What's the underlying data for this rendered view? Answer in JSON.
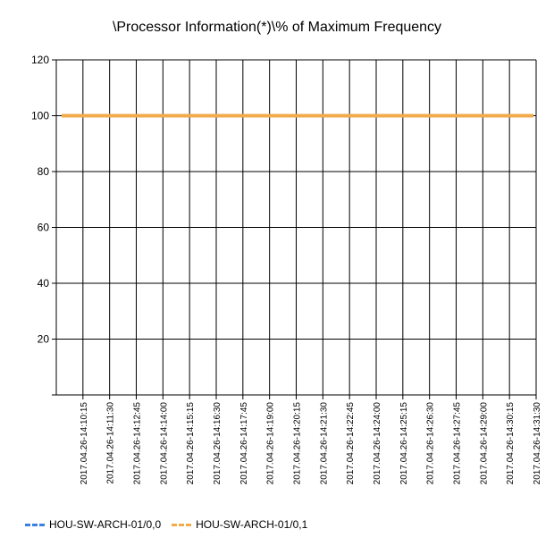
{
  "chart_data": {
    "type": "line",
    "title": "\\Processor Information(*)\\% of Maximum Frequency",
    "xlabel": "",
    "ylabel": "",
    "ylim": [
      0,
      120
    ],
    "yticks": [
      20,
      40,
      60,
      80,
      100,
      120
    ],
    "grid": true,
    "legend_position": "bottom-left",
    "x": [
      "2017.04.26-14:10:15",
      "2017.04.26-14:11:30",
      "2017.04.26-14:12:45",
      "2017.04.26-14:14:00",
      "2017.04.26-14:15:15",
      "2017.04.26-14:16:30",
      "2017.04.26-14:17:45",
      "2017.04.26-14:19:00",
      "2017.04.26-14:20:15",
      "2017.04.26-14:21:30",
      "2017.04.26-14:22:45",
      "2017.04.26-14:24:00",
      "2017.04.26-14:25:15",
      "2017.04.26-14:26:30",
      "2017.04.26-14:27:45",
      "2017.04.26-14:29:00",
      "2017.04.26-14:30:15",
      "2017.04.26-14:31:30"
    ],
    "series": [
      {
        "name": "HOU-SW-ARCH-01/0,0",
        "color": "#3d7fe0",
        "values": [
          100,
          100,
          100,
          100,
          100,
          100,
          100,
          100,
          100,
          100,
          100,
          100,
          100,
          100,
          100,
          100,
          100,
          100
        ]
      },
      {
        "name": "HOU-SW-ARCH-01/0,1",
        "color": "#f2ab4c",
        "values": [
          100,
          100,
          100,
          100,
          100,
          100,
          100,
          100,
          100,
          100,
          100,
          100,
          100,
          100,
          100,
          100,
          100,
          100
        ]
      }
    ]
  }
}
